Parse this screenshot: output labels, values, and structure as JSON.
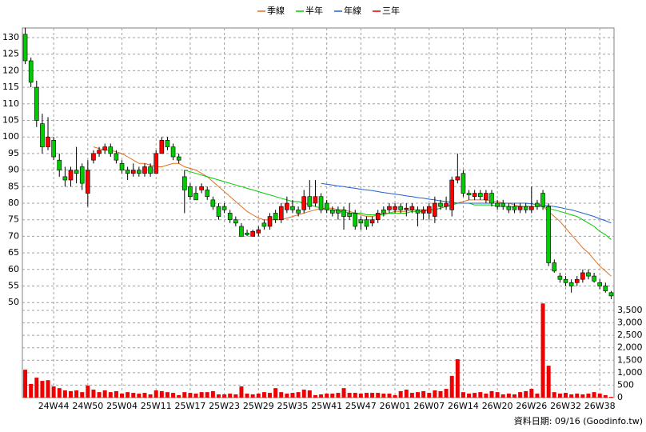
{
  "chart_data": {
    "type": "candlestick",
    "legend": "top",
    "grid": true,
    "up_color": "#ff0000",
    "down_color": "#00cc00",
    "volume_color": "#ee0000",
    "footer": "資料日期: 09/16  (Goodinfo.tw)",
    "categories": [
      null,
      null,
      null,
      null,
      null,
      "24W44",
      null,
      null,
      null,
      null,
      null,
      "24W50",
      null,
      null,
      null,
      null,
      null,
      "25W04",
      null,
      null,
      null,
      null,
      null,
      "25W11",
      null,
      null,
      null,
      null,
      null,
      "25W17",
      null,
      null,
      null,
      null,
      null,
      "25W23",
      null,
      null,
      null,
      null,
      null,
      "25W29",
      null,
      null,
      null,
      null,
      null,
      "25W35",
      null,
      null,
      null,
      null,
      null,
      "25W41",
      null,
      null,
      null,
      null,
      null,
      "25W47",
      null,
      null,
      null,
      null,
      null,
      "26W01",
      null,
      null,
      null,
      null,
      null,
      "26W07",
      null,
      null,
      null,
      null,
      null,
      "26W14",
      null,
      null,
      null,
      null,
      null,
      "26W20",
      null,
      null,
      null,
      null,
      null,
      "26W26",
      null,
      null,
      null,
      null,
      null,
      "26W32",
      null,
      null,
      null,
      null,
      null,
      "26W38",
      null,
      null
    ],
    "open": [
      131,
      123,
      115,
      104,
      97,
      99,
      93,
      88,
      87,
      90,
      91,
      83,
      93,
      95,
      96,
      97,
      95,
      92,
      90,
      89,
      90,
      89,
      91,
      89,
      95,
      99,
      97,
      94,
      88,
      85,
      83,
      84,
      84,
      81,
      79,
      79,
      77,
      75,
      73,
      71,
      70,
      71,
      74,
      73,
      77,
      75,
      78,
      79,
      78,
      78,
      82,
      80,
      82,
      80,
      78,
      78,
      78,
      77,
      77,
      75,
      75,
      74,
      75,
      78,
      78,
      78,
      79,
      78,
      78,
      78,
      77,
      77,
      76,
      80,
      79,
      78,
      87,
      89,
      83,
      82,
      83,
      81,
      83,
      80,
      80,
      79,
      79,
      78,
      79,
      78,
      80,
      83,
      79,
      62,
      58,
      57,
      56,
      56,
      57,
      59,
      58,
      56,
      55,
      53
    ],
    "high": [
      133,
      124,
      117,
      107,
      106,
      100,
      95,
      91,
      91,
      97,
      92,
      93,
      96,
      97,
      98,
      98,
      96,
      93,
      91,
      92,
      91,
      92,
      92,
      96,
      100,
      100,
      98,
      95,
      90,
      86,
      85,
      86,
      85,
      82,
      80,
      80,
      78,
      76,
      74,
      72,
      72,
      73,
      75,
      77,
      78,
      80,
      82,
      81,
      79,
      84,
      87,
      87,
      83,
      81,
      79,
      79,
      79,
      80,
      78,
      76,
      76,
      76,
      78,
      79,
      80,
      80,
      80,
      80,
      80,
      79,
      79,
      80,
      82,
      81,
      82,
      88,
      95,
      90,
      84,
      84,
      84,
      84,
      84,
      81,
      81,
      80,
      80,
      80,
      80,
      85,
      81,
      84,
      80,
      63,
      59,
      58,
      57,
      58,
      60,
      60,
      59,
      57,
      56,
      53.5
    ],
    "low": [
      122,
      115,
      103,
      95,
      96,
      93,
      88,
      85,
      85,
      86,
      84,
      79,
      92,
      94,
      95,
      94,
      92,
      89,
      87,
      88,
      88,
      88,
      88,
      89,
      95,
      96,
      93,
      92,
      77,
      81,
      81,
      83,
      81,
      78,
      75,
      77,
      74,
      73,
      70,
      70,
      70,
      70,
      72,
      72,
      74,
      74,
      77,
      77,
      76,
      77,
      78,
      79,
      77,
      77,
      76,
      75,
      72,
      75,
      72,
      72,
      72,
      73,
      74,
      76,
      77,
      77,
      77,
      76,
      77,
      73,
      75,
      75,
      74,
      78,
      78,
      76,
      86,
      82,
      81,
      81,
      81,
      80,
      79,
      78,
      78,
      77,
      77,
      77,
      77,
      77,
      78,
      78,
      61,
      59,
      56,
      55,
      53,
      55,
      56,
      57,
      56,
      54,
      53,
      51
    ],
    "close": [
      123,
      116.5,
      105,
      97,
      100,
      94,
      90,
      87,
      90,
      89,
      86,
      90,
      95,
      96,
      97,
      95,
      93,
      90,
      89,
      90,
      89,
      91,
      89,
      95,
      99,
      97,
      94,
      93,
      84,
      82,
      81,
      85,
      82,
      79,
      76,
      78,
      75,
      74,
      70,
      70.5,
      71.5,
      72,
      73,
      76,
      75,
      79,
      80,
      78,
      77,
      82,
      79,
      82,
      78,
      78,
      77,
      77,
      76,
      76,
      73,
      74,
      73,
      75,
      77,
      77,
      79,
      79,
      78,
      78.5,
      79,
      77,
      78,
      79,
      80,
      79,
      80,
      87,
      88,
      83,
      82.5,
      83,
      82,
      83,
      80,
      79,
      79,
      78,
      78,
      79,
      78,
      79,
      79,
      79,
      62,
      59.5,
      57,
      56,
      55,
      57,
      59,
      58,
      56.5,
      55,
      53.5,
      52
    ],
    "volume": [
      1120,
      550,
      800,
      670,
      700,
      450,
      380,
      290,
      260,
      290,
      220,
      480,
      320,
      220,
      290,
      220,
      260,
      160,
      220,
      190,
      160,
      190,
      130,
      290,
      260,
      220,
      190,
      100,
      220,
      190,
      160,
      220,
      220,
      260,
      130,
      130,
      160,
      130,
      450,
      160,
      130,
      160,
      220,
      190,
      380,
      220,
      160,
      190,
      220,
      320,
      290,
      100,
      130,
      160,
      160,
      190,
      380,
      190,
      190,
      160,
      190,
      190,
      190,
      160,
      160,
      100,
      260,
      320,
      190,
      220,
      260,
      190,
      290,
      260,
      350,
      870,
      1540,
      220,
      160,
      190,
      220,
      160,
      260,
      220,
      130,
      160,
      130,
      220,
      260,
      350,
      160,
      3780,
      1280,
      220,
      160,
      190,
      130,
      160,
      130,
      160,
      220,
      160,
      100,
      30
    ],
    "lines": [
      {
        "name": "季線",
        "color": "#e07020",
        "values": [
          null,
          null,
          null,
          null,
          null,
          null,
          null,
          null,
          null,
          null,
          null,
          null,
          97,
          96.5,
          96,
          96,
          95.5,
          95,
          94,
          93,
          92,
          92,
          91.5,
          91,
          91,
          91.5,
          92,
          92,
          91,
          90.5,
          90,
          89,
          88,
          86.5,
          85,
          83.5,
          82,
          80.5,
          79,
          77.5,
          76.5,
          75.5,
          75,
          75,
          75,
          75,
          75.5,
          76,
          76.5,
          77,
          77.5,
          78,
          78.5,
          78.5,
          78.5,
          78,
          78,
          77.5,
          77,
          76.5,
          76,
          76,
          76.5,
          77,
          77,
          77.5,
          77.5,
          77.5,
          78,
          78,
          78,
          78,
          78,
          78.5,
          79,
          79.5,
          80,
          80.5,
          81,
          81,
          81,
          81,
          80.5,
          80.5,
          80,
          80,
          79.5,
          79,
          79,
          79,
          79,
          79,
          77.5,
          76,
          74.5,
          72.5,
          70.5,
          68.5,
          66.5,
          65,
          63,
          61,
          59.5,
          58
        ]
      },
      {
        "name": "半年",
        "color": "#00cc00",
        "values": [
          null,
          null,
          null,
          null,
          null,
          null,
          null,
          null,
          null,
          null,
          null,
          null,
          null,
          null,
          null,
          null,
          null,
          null,
          null,
          null,
          null,
          null,
          null,
          null,
          null,
          null,
          null,
          null,
          90,
          89.5,
          89,
          88.5,
          88,
          87.5,
          87,
          86.5,
          86,
          85.5,
          85,
          84.5,
          84,
          83.5,
          83,
          82.5,
          82,
          81.5,
          81,
          80.5,
          80.5,
          80,
          79.5,
          79,
          78.5,
          78,
          78,
          77.5,
          77.5,
          77,
          77,
          77,
          76.5,
          76.5,
          76.5,
          76.5,
          77,
          77,
          77,
          77,
          77.5,
          77.5,
          77.5,
          78,
          78,
          78.5,
          79,
          79.5,
          80,
          80,
          80,
          79.5,
          79.5,
          79.5,
          79.5,
          79,
          79,
          79,
          79,
          79,
          79,
          79,
          79,
          79,
          78.5,
          78,
          77.5,
          77,
          76.5,
          76,
          75,
          74,
          73,
          71.5,
          70.5,
          69
        ]
      },
      {
        "name": "年線",
        "color": "#2060d0",
        "values": [
          null,
          null,
          null,
          null,
          null,
          null,
          null,
          null,
          null,
          null,
          null,
          null,
          null,
          null,
          null,
          null,
          null,
          null,
          null,
          null,
          null,
          null,
          null,
          null,
          null,
          null,
          null,
          null,
          null,
          null,
          null,
          null,
          null,
          null,
          null,
          null,
          null,
          null,
          null,
          null,
          null,
          null,
          null,
          null,
          null,
          null,
          null,
          null,
          null,
          null,
          null,
          null,
          86,
          85.7,
          85.5,
          85.2,
          85,
          84.7,
          84.5,
          84.2,
          84,
          83.8,
          83.5,
          83.2,
          83,
          82.7,
          82.5,
          82.2,
          82,
          81.7,
          81.5,
          81.2,
          81,
          80.7,
          80.5,
          80.3,
          80,
          80,
          80,
          80,
          80,
          80,
          80,
          80,
          80,
          80,
          80,
          80,
          80,
          79.8,
          79.6,
          79.4,
          79.2,
          79,
          78.7,
          78.3,
          78,
          77.5,
          77,
          76.5,
          76,
          75.3,
          74.7,
          74
        ]
      },
      {
        "name": "三年",
        "color": "#dd0000"
      }
    ],
    "ylim": [
      21.3,
      132.9
    ],
    "yticks": [
      50,
      55,
      60,
      65,
      70,
      75,
      80,
      85,
      90,
      95,
      100,
      105,
      110,
      115,
      120,
      125,
      130
    ],
    "y2lim": [
      0,
      14840
    ],
    "y2ticks": [
      0,
      500,
      {
        "value": 1000,
        "label": "1,000"
      },
      {
        "value": 1500,
        "label": "1,500"
      },
      {
        "value": 2000,
        "label": "2,000"
      },
      {
        "value": 2500,
        "label": "2,500"
      },
      {
        "value": 3000,
        "label": "3,000"
      },
      {
        "value": 3500,
        "label": "3,500"
      }
    ]
  }
}
